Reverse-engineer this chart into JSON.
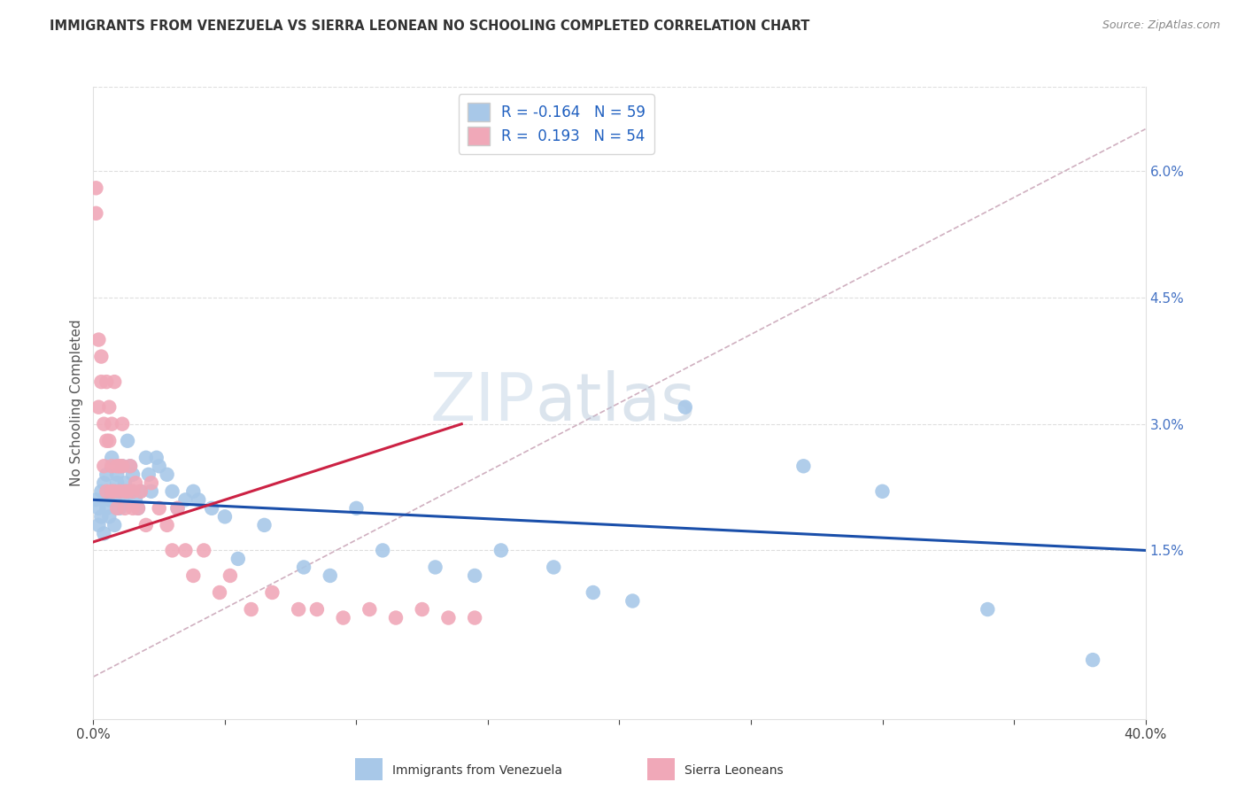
{
  "title": "IMMIGRANTS FROM VENEZUELA VS SIERRA LEONEAN NO SCHOOLING COMPLETED CORRELATION CHART",
  "source": "Source: ZipAtlas.com",
  "ylabel": "No Schooling Completed",
  "yticks_right": [
    0.015,
    0.03,
    0.045,
    0.06
  ],
  "ytick_labels_right": [
    "1.5%",
    "3.0%",
    "4.5%",
    "6.0%"
  ],
  "xlim": [
    0.0,
    0.4
  ],
  "ylim": [
    -0.005,
    0.07
  ],
  "blue_R": "-0.164",
  "blue_N": "59",
  "pink_R": "0.193",
  "pink_N": "54",
  "blue_color": "#a8c8e8",
  "pink_color": "#f0a8b8",
  "blue_line_color": "#1a4faa",
  "pink_line_color": "#cc2244",
  "ref_line_color": "#d0b0c0",
  "legend_label_blue": "Immigrants from Venezuela",
  "legend_label_pink": "Sierra Leoneans",
  "watermark_zip": "ZIP",
  "watermark_atlas": "atlas",
  "blue_line_x0": 0.0,
  "blue_line_y0": 0.021,
  "blue_line_x1": 0.4,
  "blue_line_y1": 0.015,
  "pink_line_x0": 0.0,
  "pink_line_x1": 0.14,
  "pink_line_y0": 0.016,
  "pink_line_y1": 0.03,
  "blue_scatter_x": [
    0.001,
    0.002,
    0.002,
    0.003,
    0.003,
    0.004,
    0.004,
    0.005,
    0.005,
    0.006,
    0.006,
    0.007,
    0.007,
    0.008,
    0.008,
    0.009,
    0.009,
    0.01,
    0.01,
    0.011,
    0.011,
    0.012,
    0.013,
    0.014,
    0.015,
    0.015,
    0.016,
    0.017,
    0.018,
    0.02,
    0.021,
    0.022,
    0.024,
    0.025,
    0.028,
    0.03,
    0.032,
    0.035,
    0.038,
    0.04,
    0.045,
    0.05,
    0.055,
    0.065,
    0.08,
    0.09,
    0.1,
    0.11,
    0.13,
    0.145,
    0.155,
    0.175,
    0.19,
    0.205,
    0.225,
    0.27,
    0.3,
    0.34,
    0.38
  ],
  "blue_scatter_y": [
    0.021,
    0.02,
    0.018,
    0.022,
    0.019,
    0.023,
    0.017,
    0.024,
    0.02,
    0.021,
    0.019,
    0.022,
    0.026,
    0.021,
    0.018,
    0.024,
    0.023,
    0.022,
    0.02,
    0.025,
    0.021,
    0.023,
    0.028,
    0.025,
    0.022,
    0.024,
    0.021,
    0.02,
    0.022,
    0.026,
    0.024,
    0.022,
    0.026,
    0.025,
    0.024,
    0.022,
    0.02,
    0.021,
    0.022,
    0.021,
    0.02,
    0.019,
    0.014,
    0.018,
    0.013,
    0.012,
    0.02,
    0.015,
    0.013,
    0.012,
    0.015,
    0.013,
    0.01,
    0.009,
    0.032,
    0.025,
    0.022,
    0.008,
    0.002
  ],
  "pink_scatter_x": [
    0.001,
    0.001,
    0.002,
    0.002,
    0.003,
    0.003,
    0.004,
    0.004,
    0.005,
    0.005,
    0.005,
    0.006,
    0.006,
    0.007,
    0.007,
    0.007,
    0.008,
    0.008,
    0.009,
    0.009,
    0.01,
    0.01,
    0.011,
    0.011,
    0.012,
    0.012,
    0.013,
    0.014,
    0.015,
    0.015,
    0.016,
    0.017,
    0.018,
    0.02,
    0.022,
    0.025,
    0.028,
    0.03,
    0.032,
    0.035,
    0.038,
    0.042,
    0.048,
    0.052,
    0.06,
    0.068,
    0.078,
    0.085,
    0.095,
    0.105,
    0.115,
    0.125,
    0.135,
    0.145
  ],
  "pink_scatter_y": [
    0.055,
    0.058,
    0.04,
    0.032,
    0.038,
    0.035,
    0.03,
    0.025,
    0.035,
    0.028,
    0.022,
    0.032,
    0.028,
    0.03,
    0.025,
    0.022,
    0.035,
    0.022,
    0.025,
    0.02,
    0.025,
    0.022,
    0.03,
    0.025,
    0.022,
    0.02,
    0.022,
    0.025,
    0.022,
    0.02,
    0.023,
    0.02,
    0.022,
    0.018,
    0.023,
    0.02,
    0.018,
    0.015,
    0.02,
    0.015,
    0.012,
    0.015,
    0.01,
    0.012,
    0.008,
    0.01,
    0.008,
    0.008,
    0.007,
    0.008,
    0.007,
    0.008,
    0.007,
    0.007
  ]
}
